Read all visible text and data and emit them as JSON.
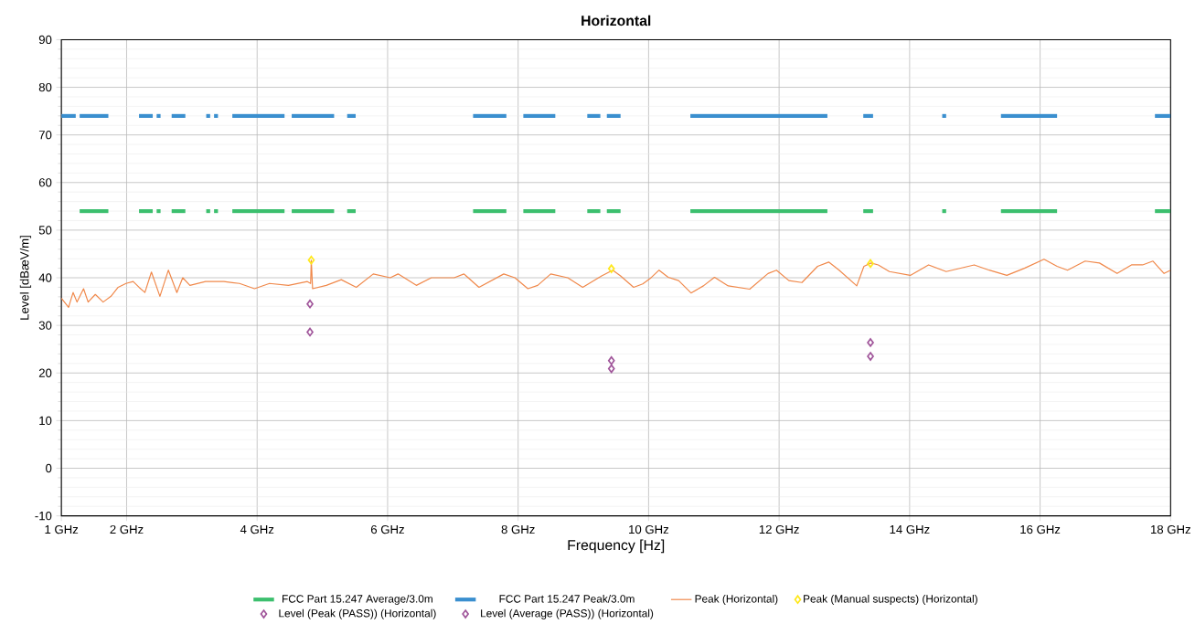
{
  "chart_data": {
    "type": "line",
    "title": "Horizontal",
    "xlabel": "Frequency [Hz]",
    "ylabel": "Level [dBæV/m]",
    "xlim": [
      1,
      18
    ],
    "ylim": [
      -10,
      90
    ],
    "xticks": [
      {
        "value": 1,
        "label": "1 GHz"
      },
      {
        "value": 2,
        "label": "2 GHz"
      },
      {
        "value": 4,
        "label": "4 GHz"
      },
      {
        "value": 6,
        "label": "6 GHz"
      },
      {
        "value": 8,
        "label": "8 GHz"
      },
      {
        "value": 10,
        "label": "10 GHz"
      },
      {
        "value": 12,
        "label": "12 GHz"
      },
      {
        "value": 14,
        "label": "14 GHz"
      },
      {
        "value": 16,
        "label": "16 GHz"
      },
      {
        "value": 18,
        "label": "18 GHz"
      }
    ],
    "yticks": [
      -10,
      0,
      10,
      20,
      30,
      40,
      50,
      60,
      70,
      80,
      90
    ],
    "grid": true,
    "legend": "bottom",
    "series": [
      {
        "name": "FCC Part 15.247 Average/3.0m",
        "color": "#3cbf6e",
        "x": [
          1.28,
          1.72,
          1.9,
          2.19,
          2.4,
          2.43,
          2.46,
          2.52,
          2.6,
          2.69,
          2.9,
          3.1,
          3.22,
          3.28,
          3.31,
          3.34,
          3.4,
          3.5,
          3.62,
          4.42,
          4.48,
          4.53,
          5.18,
          5.3,
          5.38,
          5.51,
          6.4,
          7.31,
          7.82,
          7.95,
          8.08,
          8.57,
          8.8,
          9.06,
          9.26,
          9.3,
          9.36,
          9.57,
          10.1,
          10.64,
          12.74,
          13.0,
          13.29,
          13.44,
          14.0,
          14.5,
          14.56,
          15.0,
          15.4,
          16.26,
          17.0,
          17.76,
          18.0
        ],
        "values": [
          54,
          54,
          null,
          54,
          54,
          null,
          54,
          54,
          null,
          54,
          54,
          null,
          54,
          54,
          null,
          54,
          54,
          null,
          54,
          54,
          null,
          54,
          54,
          null,
          54,
          54,
          null,
          54,
          54,
          null,
          54,
          54,
          null,
          54,
          54,
          null,
          54,
          54,
          null,
          54,
          54,
          null,
          54,
          54,
          null,
          54,
          54,
          null,
          54,
          54,
          null,
          54,
          54
        ]
      },
      {
        "name": "FCC Part 15.247 Peak/3.0m",
        "color": "#3a8fcf",
        "x": [
          1.0,
          1.22,
          1.25,
          1.28,
          1.72,
          1.9,
          2.19,
          2.4,
          2.43,
          2.46,
          2.52,
          2.6,
          2.69,
          2.9,
          3.1,
          3.22,
          3.28,
          3.31,
          3.34,
          3.4,
          3.5,
          3.62,
          4.42,
          4.48,
          4.53,
          5.18,
          5.3,
          5.38,
          5.51,
          6.4,
          7.31,
          7.82,
          7.95,
          8.08,
          8.57,
          8.8,
          9.06,
          9.26,
          9.3,
          9.36,
          9.57,
          10.1,
          10.64,
          12.74,
          13.0,
          13.29,
          13.44,
          14.0,
          14.5,
          14.56,
          15.0,
          15.4,
          16.26,
          17.0,
          17.76,
          18.0
        ],
        "values": [
          74,
          74,
          null,
          74,
          74,
          null,
          74,
          74,
          null,
          74,
          74,
          null,
          74,
          74,
          null,
          74,
          74,
          null,
          74,
          74,
          null,
          74,
          74,
          null,
          74,
          74,
          null,
          74,
          74,
          null,
          74,
          74,
          null,
          74,
          74,
          null,
          74,
          74,
          null,
          74,
          74,
          null,
          74,
          74,
          null,
          74,
          74,
          null,
          74,
          74,
          null,
          74,
          74,
          null,
          74,
          74
        ]
      },
      {
        "name": "Peak (Horizontal)",
        "color": "#f0884a",
        "x": [
          1.0,
          1.11,
          1.18,
          1.24,
          1.34,
          1.41,
          1.52,
          1.64,
          1.76,
          1.87,
          1.99,
          2.1,
          2.19,
          2.28,
          2.38,
          2.51,
          2.64,
          2.77,
          2.86,
          2.97,
          3.21,
          3.49,
          3.73,
          3.96,
          4.19,
          4.48,
          4.77,
          4.82,
          4.83,
          4.85,
          5.06,
          5.29,
          5.52,
          5.78,
          6.04,
          6.16,
          6.44,
          6.67,
          7.02,
          7.17,
          7.4,
          7.78,
          7.95,
          8.15,
          8.3,
          8.5,
          8.76,
          8.99,
          9.28,
          9.45,
          9.57,
          9.77,
          9.91,
          10.02,
          10.16,
          10.3,
          10.46,
          10.65,
          10.84,
          11.01,
          11.22,
          11.55,
          11.83,
          11.96,
          12.15,
          12.35,
          12.59,
          12.76,
          12.92,
          13.19,
          13.3,
          13.41,
          13.52,
          13.69,
          14.01,
          14.29,
          14.56,
          14.99,
          15.22,
          15.49,
          15.76,
          16.06,
          16.26,
          16.42,
          16.69,
          16.91,
          17.18,
          17.4,
          17.57,
          17.73,
          17.9,
          18.0
        ],
        "values": [
          35.7,
          33.8,
          36.9,
          34.9,
          37.7,
          34.9,
          36.5,
          34.9,
          36.1,
          38.0,
          38.8,
          39.2,
          38.0,
          36.9,
          41.2,
          36.1,
          41.6,
          36.9,
          40.0,
          38.4,
          39.2,
          39.2,
          38.8,
          37.7,
          38.8,
          38.4,
          39.2,
          38.8,
          43.7,
          37.7,
          38.4,
          39.6,
          38.0,
          40.8,
          40.0,
          40.8,
          38.4,
          40.0,
          40.0,
          40.8,
          38.0,
          40.8,
          40.0,
          37.7,
          38.4,
          40.8,
          40.0,
          38.0,
          40.4,
          41.6,
          40.4,
          38.0,
          38.7,
          39.8,
          41.6,
          40.1,
          39.4,
          36.8,
          38.3,
          40.1,
          38.3,
          37.6,
          40.9,
          41.6,
          39.4,
          39.0,
          42.4,
          43.3,
          41.6,
          38.3,
          42.4,
          43.1,
          42.7,
          41.3,
          40.5,
          42.7,
          41.3,
          42.7,
          41.6,
          40.5,
          42.0,
          43.9,
          42.4,
          41.6,
          43.5,
          43.1,
          40.9,
          42.7,
          42.7,
          43.5,
          40.9,
          41.6
        ]
      },
      {
        "name": "Peak (Manual suspects) (Horizontal)",
        "type": "scatter",
        "marker": "diamond",
        "color": "#ffe81a",
        "x": [
          4.83,
          9.43,
          13.4
        ],
        "values": [
          43.7,
          41.9,
          43.0
        ]
      },
      {
        "name": "Level (Peak (PASS)) (Horizontal)",
        "type": "scatter",
        "marker": "diamond",
        "color": "#a0559a",
        "x": [
          4.81,
          9.43,
          13.4
        ],
        "values": [
          34.5,
          22.6,
          26.4
        ]
      },
      {
        "name": "Level (Average (PASS)) (Horizontal)",
        "type": "scatter",
        "marker": "diamond",
        "color": "#a0559a",
        "x": [
          4.81,
          9.43,
          13.4
        ],
        "values": [
          28.6,
          20.9,
          23.5
        ]
      }
    ]
  }
}
